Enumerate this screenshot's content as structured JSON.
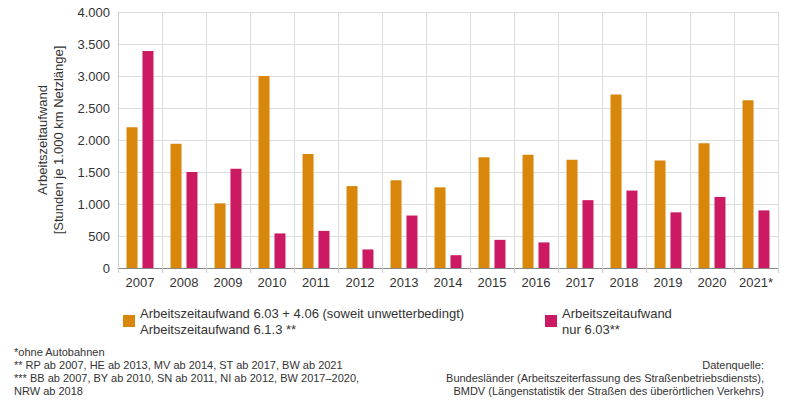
{
  "chart_data": {
    "type": "bar",
    "ylabel": "Arbeitszeitaufwand\n[Stunden je 1.000 km Netzlänge]",
    "categories": [
      "2007",
      "2008",
      "2009",
      "2010",
      "2011",
      "2012",
      "2013",
      "2014",
      "2015",
      "2016",
      "2017",
      "2018",
      "2019",
      "2020",
      "2021*"
    ],
    "series": [
      {
        "name": "Arbeitszeitaufwand 6.03 + 4.06 (soweit unwetterbedingt)\nArbeitszeitaufwand 6.1.3 **",
        "color": "#d9870b",
        "values": [
          2200,
          1940,
          1010,
          3000,
          1780,
          1280,
          1370,
          1260,
          1730,
          1770,
          1690,
          2710,
          1680,
          1950,
          2620
        ]
      },
      {
        "name": "Arbeitszeitaufwand\nnur 6.03**",
        "color": "#cc1a62",
        "values": [
          3390,
          1500,
          1550,
          540,
          580,
          290,
          820,
          200,
          440,
          400,
          1060,
          1210,
          870,
          1110,
          900
        ]
      }
    ],
    "ylim": [
      0,
      4000
    ],
    "yticks": [
      0,
      500,
      {
        "value": 1000,
        "label": "1.000"
      },
      {
        "value": 1500,
        "label": "1.500"
      },
      {
        "value": 2000,
        "label": "2.000"
      },
      {
        "value": 2500,
        "label": "2.500"
      },
      {
        "value": 3000,
        "label": "3.000"
      },
      {
        "value": 3500,
        "label": "3.500"
      },
      {
        "value": 4000,
        "label": "4.000"
      }
    ],
    "grid": true,
    "notes": [
      "*ohne Autobahnen",
      "** RP ab 2007, HE ab 2013, MV ab 2014, ST ab 2017, BW ab 2021",
      "*** BB ab 2007, BY ab 2010, SN ab 2011, NI ab 2012, BW 2017–2020,",
      "NRW ab 2018"
    ],
    "source": [
      "Datenquelle:",
      "Bundesländer (Arbeitszeiterfassung des Straßenbetriebsdiensts),",
      "BMDV (Längenstatistik der Straßen des überörtlichen Verkehrs)"
    ]
  }
}
